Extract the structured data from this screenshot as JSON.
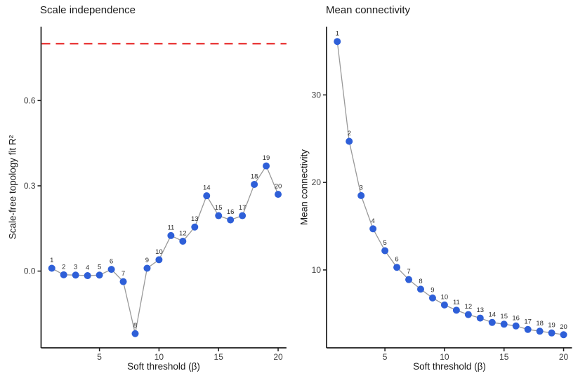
{
  "figure": {
    "background": "#ffffff",
    "axis_color": "#1a1a1a",
    "tick_label_color": "#404040",
    "point_color": "#2e5fd8",
    "line_color": "#999999",
    "point_label_color": "#2b2b2b",
    "threshold_color": "#e62222"
  },
  "chart_data": [
    {
      "type": "line",
      "title": "Scale independence",
      "xlabel": "Soft threshold (β)",
      "ylabel": "Scale-free topology fit R²",
      "x": [
        1,
        2,
        3,
        4,
        5,
        6,
        7,
        8,
        9,
        10,
        11,
        12,
        13,
        14,
        15,
        16,
        17,
        18,
        19,
        20
      ],
      "values": [
        0.01,
        -0.013,
        -0.014,
        -0.016,
        -0.014,
        0.006,
        -0.037,
        -0.22,
        0.01,
        0.04,
        0.125,
        0.105,
        0.155,
        0.265,
        0.195,
        0.18,
        0.195,
        0.305,
        0.37,
        0.27
      ],
      "point_labels": [
        "1",
        "2",
        "3",
        "4",
        "5",
        "6",
        "7",
        "8",
        "9",
        "10",
        "11",
        "12",
        "13",
        "14",
        "15",
        "16",
        "17",
        "18",
        "19",
        "20"
      ],
      "xlim": [
        0.1,
        20.7
      ],
      "ylim": [
        -0.27,
        0.86
      ],
      "x_ticks": [
        5,
        10,
        15,
        20
      ],
      "y_ticks": [
        {
          "value": 0.0,
          "label": "0.0"
        },
        {
          "value": 0.3,
          "label": "0.3"
        },
        {
          "value": 0.6,
          "label": "0.6"
        }
      ],
      "hline": {
        "value": 0.8,
        "style": "dashed",
        "color": "#e62222"
      },
      "grid": false,
      "legend": "none",
      "marker": "circle"
    },
    {
      "type": "line",
      "title": "Mean connectivity",
      "xlabel": "Soft threshold (β)",
      "ylabel": "Mean connectivity",
      "x": [
        1,
        2,
        3,
        4,
        5,
        6,
        7,
        8,
        9,
        10,
        11,
        12,
        13,
        14,
        15,
        16,
        17,
        18,
        19,
        20
      ],
      "values": [
        36.1,
        24.7,
        18.5,
        14.7,
        12.2,
        10.3,
        8.9,
        7.8,
        6.8,
        6.0,
        5.4,
        4.9,
        4.5,
        4.0,
        3.8,
        3.6,
        3.2,
        3.0,
        2.8,
        2.6
      ],
      "point_labels": [
        "1",
        "2",
        "3",
        "4",
        "5",
        "6",
        "7",
        "8",
        "9",
        "10",
        "11",
        "12",
        "13",
        "14",
        "15",
        "16",
        "17",
        "18",
        "19",
        "20"
      ],
      "xlim": [
        0.1,
        20.7
      ],
      "ylim": [
        1.1,
        37.8
      ],
      "x_ticks": [
        5,
        10,
        15,
        20
      ],
      "y_ticks": [
        {
          "value": 10,
          "label": "10"
        },
        {
          "value": 20,
          "label": "20"
        },
        {
          "value": 30,
          "label": "30"
        }
      ],
      "grid": false,
      "legend": "none",
      "marker": "circle"
    }
  ]
}
